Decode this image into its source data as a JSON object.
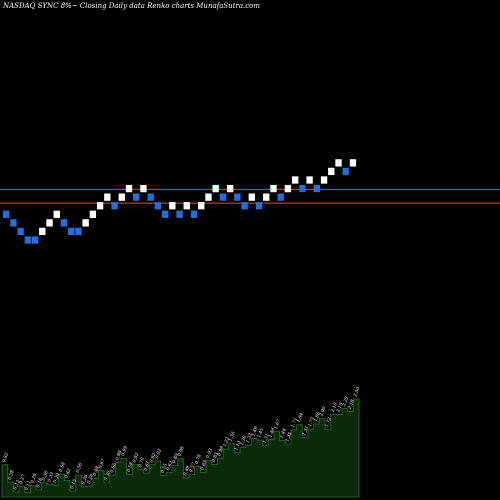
{
  "header": {
    "title": "NASDAQ SYNC 8%~  Closing Daily data  Renko  charts MunafaSutra.com"
  },
  "colors": {
    "background": "#000000",
    "up_brick": "#ffffff",
    "down_brick": "#1e6fe0",
    "reference_line": "#c85a14",
    "volume_fill": "#0a2a0a",
    "volume_stroke": "#1f7a1f",
    "volume_label": "#ffffff"
  },
  "chart_data": [
    {
      "type": "renko",
      "bricks": [
        {
          "dir": "down",
          "level": 12
        },
        {
          "dir": "down",
          "level": 11
        },
        {
          "dir": "down",
          "level": 10
        },
        {
          "dir": "down",
          "level": 9
        },
        {
          "dir": "down",
          "level": 9
        },
        {
          "dir": "up",
          "level": 10
        },
        {
          "dir": "up",
          "level": 11
        },
        {
          "dir": "up",
          "level": 12
        },
        {
          "dir": "down",
          "level": 11
        },
        {
          "dir": "down",
          "level": 10
        },
        {
          "dir": "down",
          "level": 10
        },
        {
          "dir": "up",
          "level": 11
        },
        {
          "dir": "up",
          "level": 12
        },
        {
          "dir": "up",
          "level": 13
        },
        {
          "dir": "up",
          "level": 14
        },
        {
          "dir": "down",
          "level": 13
        },
        {
          "dir": "up",
          "level": 14
        },
        {
          "dir": "up",
          "level": 15
        },
        {
          "dir": "down",
          "level": 14
        },
        {
          "dir": "up",
          "level": 15
        },
        {
          "dir": "down",
          "level": 14
        },
        {
          "dir": "down",
          "level": 13
        },
        {
          "dir": "down",
          "level": 12
        },
        {
          "dir": "up",
          "level": 13
        },
        {
          "dir": "down",
          "level": 12
        },
        {
          "dir": "up",
          "level": 13
        },
        {
          "dir": "down",
          "level": 12
        },
        {
          "dir": "up",
          "level": 13
        },
        {
          "dir": "up",
          "level": 14
        },
        {
          "dir": "up",
          "level": 15
        },
        {
          "dir": "down",
          "level": 14
        },
        {
          "dir": "up",
          "level": 15
        },
        {
          "dir": "down",
          "level": 14
        },
        {
          "dir": "down",
          "level": 13
        },
        {
          "dir": "up",
          "level": 14
        },
        {
          "dir": "down",
          "level": 13
        },
        {
          "dir": "up",
          "level": 14
        },
        {
          "dir": "up",
          "level": 15
        },
        {
          "dir": "down",
          "level": 14
        },
        {
          "dir": "up",
          "level": 15
        },
        {
          "dir": "up",
          "level": 16
        },
        {
          "dir": "down",
          "level": 15
        },
        {
          "dir": "up",
          "level": 16
        },
        {
          "dir": "down",
          "level": 15
        },
        {
          "dir": "up",
          "level": 16
        },
        {
          "dir": "up",
          "level": 17
        },
        {
          "dir": "up",
          "level": 18
        },
        {
          "dir": "down",
          "level": 17
        },
        {
          "dir": "up",
          "level": 18
        }
      ],
      "reference_lines": [
        14.9,
        13.3
      ],
      "y_range": [
        -5,
        30
      ]
    },
    {
      "type": "area",
      "values": [
        0.82,
        0.38,
        0.13,
        0.27,
        0.11,
        0.29,
        0.18,
        0.36,
        0.33,
        0.3,
        0.58,
        0.42,
        0.15,
        0.56,
        0.26,
        0.28,
        0.48,
        0.67,
        0.36,
        0.56,
        0.88,
        0.99,
        0.58,
        0.82,
        0.7,
        0.61,
        0.82,
        0.92,
        0.55,
        0.62,
        0.8,
        0.98,
        0.49,
        0.57,
        0.78,
        0.63,
        0.93,
        0.83,
        0.99,
        1.22,
        1.36,
        1.13,
        1.26,
        1.32,
        1.49,
        1.45,
        1.31,
        1.46,
        1.67,
        1.44,
        1.35,
        1.71,
        1.84,
        1.51,
        1.73,
        1.86,
        2.0,
        1.72,
        2.1,
        2.1,
        2.25,
        2.18,
        2.5
      ],
      "labels": [
        "0.82",
        "0.38",
        "0.13",
        "0.27",
        "0.11",
        "0.29",
        "0.18",
        "0.36",
        "0.33",
        "0.30",
        "0.58",
        "0.42",
        "0.15",
        "0.56",
        "0.26",
        "0.28",
        "0.48",
        "0.67",
        "0.36",
        "0.56",
        "0.88",
        "0.99",
        "0.58",
        "0.82",
        "0.70",
        "0.61",
        "0.82",
        "0.92",
        "0.55",
        "0.62",
        "0.80",
        "0.98",
        "0.49",
        "0.57",
        "0.78",
        "0.63",
        "0.93",
        "0.83",
        "0.99",
        "1.22",
        "1.36",
        "1.13",
        "1.26",
        "1.32",
        "1.49",
        "1.45",
        "1.31",
        "1.46",
        "1.67",
        "1.44",
        "1.35",
        "1.71",
        "1.84",
        "1.51",
        "1.73",
        "1.86",
        "2.00",
        "1.72",
        "2.10",
        "2.10",
        "2.25",
        "2.18",
        "2.50"
      ],
      "y_range": [
        0,
        2.6
      ]
    }
  ]
}
